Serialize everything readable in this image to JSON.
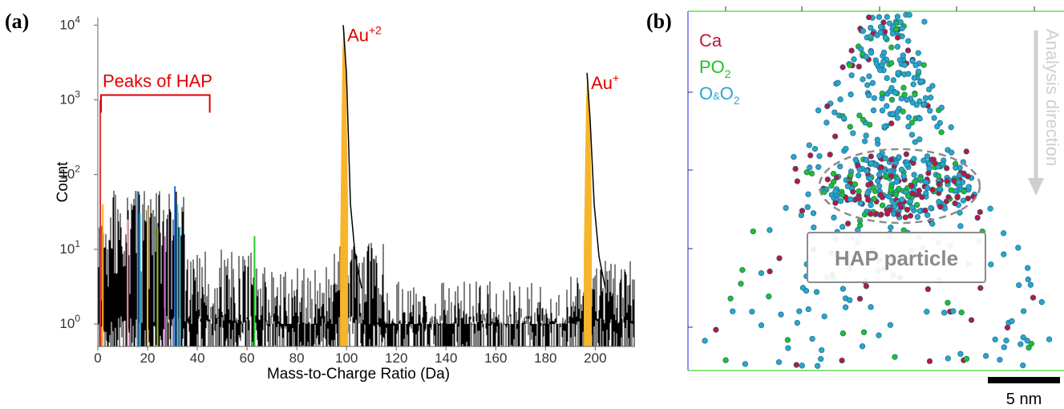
{
  "panels": {
    "a_label": "(a)",
    "b_label": "(b)"
  },
  "chart_data": [
    {
      "type": "line",
      "panel": "(a)",
      "xlabel": "Mass-to-Charge Ratio (Da)",
      "ylabel": "Count",
      "xlim": [
        0,
        216
      ],
      "ylim_log10": [
        -0.3,
        4.1
      ],
      "y_scale": "log",
      "x_ticks": [
        0,
        20,
        40,
        60,
        80,
        100,
        120,
        140,
        160,
        180,
        200
      ],
      "y_ticks": [
        {
          "base": "10",
          "exp": "0"
        },
        {
          "base": "10",
          "exp": "1"
        },
        {
          "base": "10",
          "exp": "2"
        },
        {
          "base": "10",
          "exp": "3"
        },
        {
          "base": "10",
          "exp": "4"
        }
      ],
      "hap_bracket": {
        "label": "Peaks of HAP",
        "x_from": 0,
        "x_to": 45
      },
      "peaks": [
        {
          "label_base": "Au",
          "label_sup": "+2",
          "x": 99,
          "count": 10000,
          "color": "#f7b52c"
        },
        {
          "label_base": "Au",
          "label_sup": "+",
          "x": 197,
          "count": 2300,
          "color": "#f7b52c"
        }
      ],
      "colored_lines": [
        {
          "x": 1,
          "count": 1000,
          "color": "#d33"
        },
        {
          "x": 2,
          "count": 40,
          "color": "#f7b52c"
        },
        {
          "x": 12,
          "count": 25,
          "color": "#f28ec4"
        },
        {
          "x": 16,
          "count": 60,
          "color": "#48c"
        },
        {
          "x": 17,
          "count": 30,
          "color": "#3ac0f0"
        },
        {
          "x": 20,
          "count": 35,
          "color": "#f7b52c"
        },
        {
          "x": 24,
          "count": 20,
          "color": "#9b2"
        },
        {
          "x": 27,
          "count": 15,
          "color": "#c6c"
        },
        {
          "x": 31,
          "count": 70,
          "color": "#36c"
        },
        {
          "x": 32,
          "count": 40,
          "color": "#3ac0f0"
        },
        {
          "x": 33,
          "count": 20,
          "color": "#3ac0f0"
        },
        {
          "x": 63,
          "count": 15,
          "color": "#2c2"
        }
      ],
      "colors": {
        "background_signal": "#000000",
        "au_fill": "#f7b52c",
        "annotation": "#e00000"
      }
    },
    {
      "type": "scatter",
      "panel": "(b)",
      "legend": [
        {
          "label": "Ca",
          "color": "#c0143c"
        },
        {
          "label": "PO",
          "subscript": "2",
          "color": "#22c022"
        },
        {
          "label": "O",
          "mid": "&",
          "label2": "O",
          "subscript": "2",
          "color": "#2aa6cc"
        }
      ],
      "direction_label": "Analysis direction",
      "particle_label": "HAP particle",
      "scale_bar": "5 nm",
      "colors": {
        "ca": "#c0143c",
        "po2": "#22c022",
        "o": "#2aa6cc",
        "box_top": "#66dd55",
        "box_left": "#6a6aff"
      }
    }
  ]
}
